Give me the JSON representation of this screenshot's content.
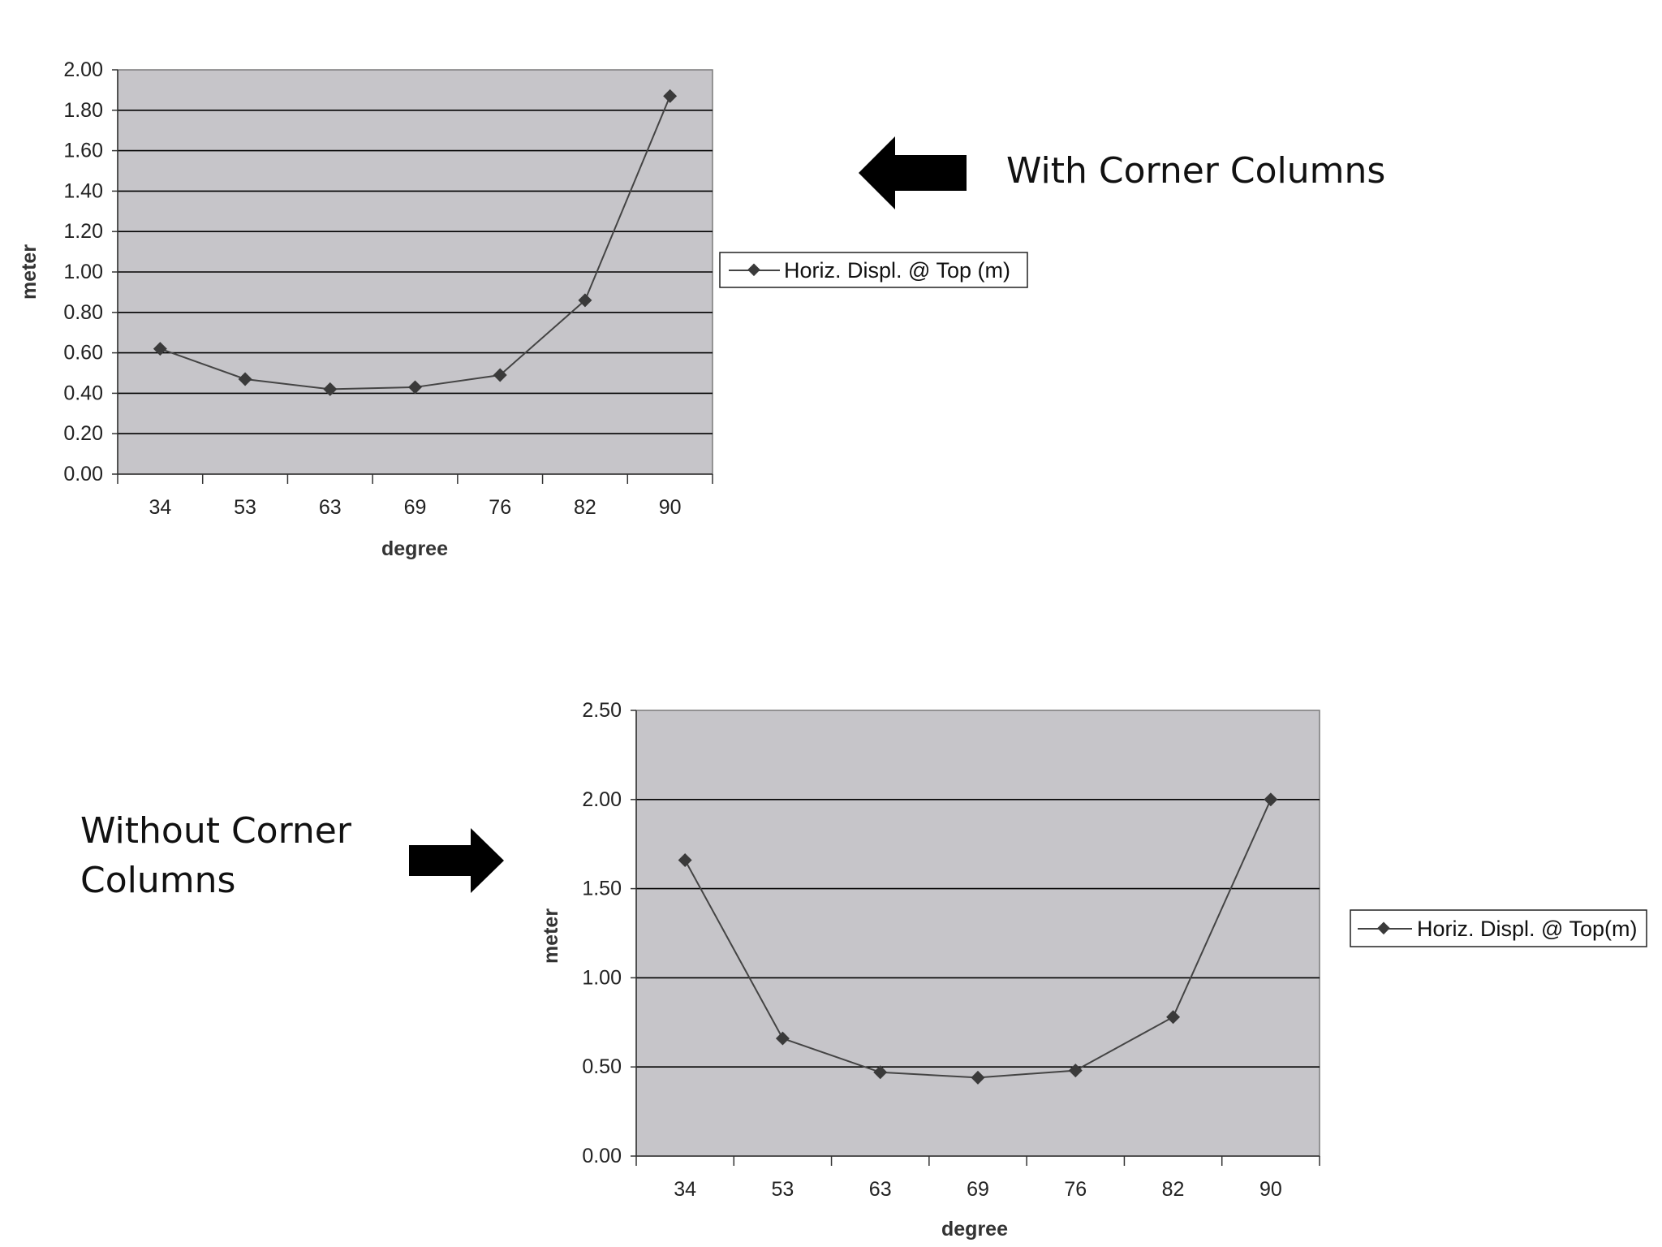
{
  "chart_data": [
    {
      "type": "line",
      "categories": [
        "34",
        "53",
        "63",
        "69",
        "76",
        "82",
        "90"
      ],
      "series": [
        {
          "name": "Horiz. Displ. @ Top (m)",
          "values": [
            0.62,
            0.47,
            0.42,
            0.43,
            0.49,
            0.86,
            1.87
          ]
        }
      ],
      "xlabel": "degree",
      "ylabel": "meter",
      "ylim": [
        0,
        2.0
      ],
      "yticks": [
        "0.00",
        "0.20",
        "0.40",
        "0.60",
        "0.80",
        "1.00",
        "1.20",
        "1.40",
        "1.60",
        "1.80",
        "2.00"
      ],
      "grid": true,
      "legend": "right",
      "plot_background": "#c6c5c9",
      "line_color": "#444444"
    },
    {
      "type": "line",
      "categories": [
        "34",
        "53",
        "63",
        "69",
        "76",
        "82",
        "90"
      ],
      "series": [
        {
          "name": "Horiz. Displ. @ Top(m)",
          "values": [
            1.66,
            0.66,
            0.47,
            0.44,
            0.48,
            0.78,
            2.0
          ]
        }
      ],
      "xlabel": "degree",
      "ylabel": "meter",
      "ylim": [
        0,
        2.5
      ],
      "yticks": [
        "0.00",
        "0.50",
        "1.00",
        "1.50",
        "2.00",
        "2.50"
      ],
      "grid": true,
      "legend": "right",
      "plot_background": "#c6c5c9",
      "line_color": "#444444"
    }
  ],
  "annotations": {
    "top_callout": "With Corner Columns",
    "bottom_callout": "Without Corner\nColumns"
  }
}
